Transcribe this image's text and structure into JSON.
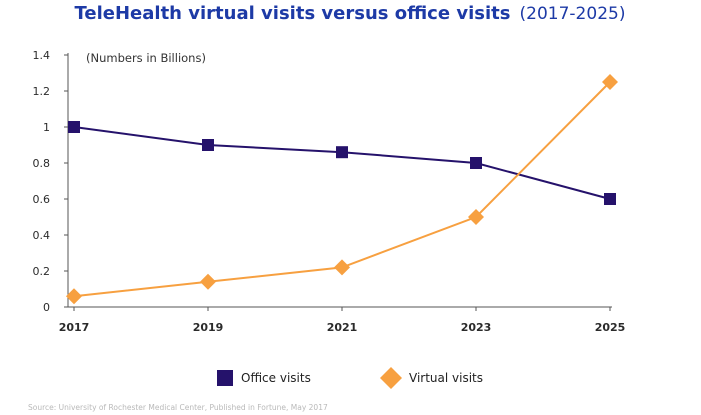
{
  "chart_data": {
    "type": "line",
    "title": "TeleHealth virtual visits versus office visits",
    "title_suffix": "(2017-2025)",
    "note": "(Numbers in Billions)",
    "source": "Source: University of Rochester Medical Center, Published in Fortune, May 2017",
    "x": [
      "2017",
      "2019",
      "2021",
      "2023",
      "2025"
    ],
    "ylim": [
      0,
      1.4
    ],
    "yticks": [
      0,
      0.2,
      0.4,
      0.6,
      0.8,
      1,
      1.2,
      1.4
    ],
    "legend_position": "bottom",
    "grid": false,
    "series": [
      {
        "name": "Office visits",
        "color": "#25126b",
        "marker": "square",
        "values": [
          1.0,
          0.9,
          0.86,
          0.8,
          0.6
        ]
      },
      {
        "name": "Virtual visits",
        "color": "#f7a040",
        "marker": "diamond",
        "values": [
          0.06,
          0.14,
          0.22,
          0.5,
          1.25
        ]
      }
    ]
  },
  "colors": {
    "title": "#1d3aa6",
    "axis": "#555555"
  }
}
